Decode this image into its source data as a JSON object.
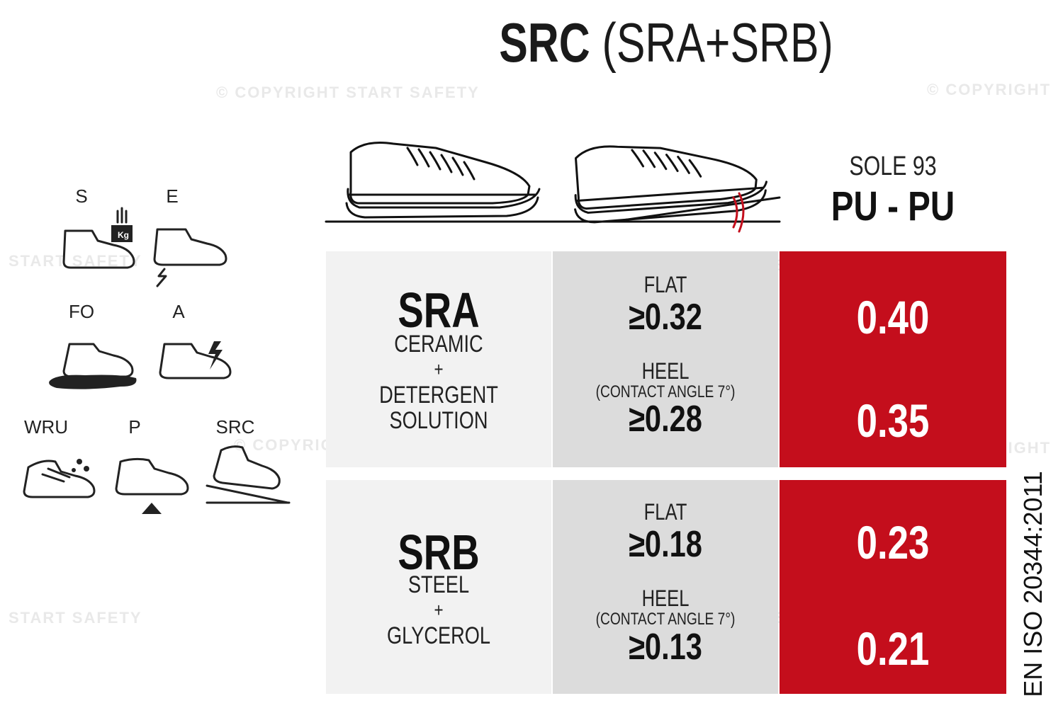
{
  "title": {
    "bold": "SRC",
    "light": "(SRA+SRB)"
  },
  "watermark": {
    "copyright": "© COPYRIGHT START SAFETY",
    "copyright_short": "© COPYRIGHT",
    "brand": "START SAFETY",
    "brand_short": "SAFETY"
  },
  "icons": [
    {
      "label": "S",
      "icon": "toe-impact-shoe-icon"
    },
    {
      "label": "E",
      "icon": "heel-energy-shoe-icon"
    },
    {
      "label": "FO",
      "icon": "fuel-oil-shoe-icon"
    },
    {
      "label": "A",
      "icon": "antistatic-shoe-icon"
    },
    {
      "label": "WRU",
      "icon": "water-resistant-shoe-icon"
    },
    {
      "label": "P",
      "icon": "puncture-shoe-icon"
    },
    {
      "label": "SRC",
      "icon": "slip-resistance-shoe-icon"
    }
  ],
  "sole": {
    "label": "SOLE 93",
    "value": "PU - PU"
  },
  "tests": [
    {
      "name": "SRA",
      "surface_lines": [
        "CERAMIC",
        "+",
        "DETERGENT",
        "SOLUTION"
      ],
      "flat_label": "FLAT",
      "flat_min": "≥0.32",
      "heel_label": "HEEL",
      "heel_note": "(CONTACT ANGLE 7°)",
      "heel_min": "≥0.28",
      "flat_result": "0.40",
      "heel_result": "0.35"
    },
    {
      "name": "SRB",
      "surface_lines": [
        "STEEL",
        "+",
        "GLYCEROL"
      ],
      "flat_label": "FLAT",
      "flat_min": "≥0.18",
      "heel_label": "HEEL",
      "heel_note": "(CONTACT ANGLE 7°)",
      "heel_min": "≥0.13",
      "flat_result": "0.23",
      "heel_result": "0.21"
    }
  ],
  "standard": "EN ISO 20344:2011",
  "colors": {
    "red": "#c40e1c",
    "light_grey": "#f2f2f2",
    "mid_grey": "#dcdcdc",
    "text": "#1a1a1a"
  }
}
